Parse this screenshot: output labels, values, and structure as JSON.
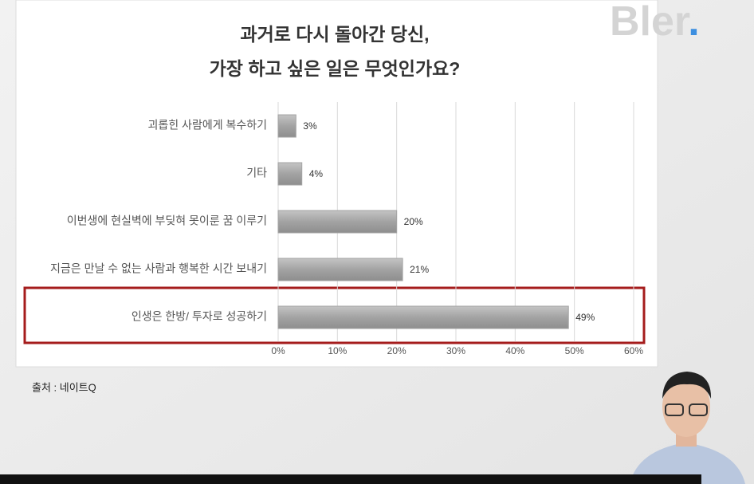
{
  "chart_data": {
    "type": "bar",
    "orientation": "horizontal",
    "title": [
      "과거로 다시 돌아간 당신,",
      "가장 하고 싶은 일은 무엇인가요?"
    ],
    "categories": [
      "괴롭힌 사람에게 복수하기",
      "기타",
      "이번생에 현실벽에 부딪혀 못이룬 꿈 이루기",
      "지금은 만날 수 없는 사람과 행복한 시간 보내기",
      "인생은 한방/ 투자로 성공하기"
    ],
    "values": [
      3,
      4,
      20,
      21,
      49
    ],
    "value_labels": [
      "3%",
      "4%",
      "20%",
      "21%",
      "49%"
    ],
    "color": "#a3a3a3",
    "xlim": [
      0,
      60
    ],
    "xticks": [
      {
        "value": 0,
        "label": "0%"
      },
      {
        "value": 10,
        "label": "10%"
      },
      {
        "value": 20,
        "label": "20%"
      },
      {
        "value": 30,
        "label": "30%"
      },
      {
        "value": 40,
        "label": "40%"
      },
      {
        "value": 50,
        "label": "50%"
      },
      {
        "value": 60,
        "label": "60%"
      }
    ],
    "grid": true
  },
  "source": "출처 : 네이트Q",
  "logo": "Bler."
}
